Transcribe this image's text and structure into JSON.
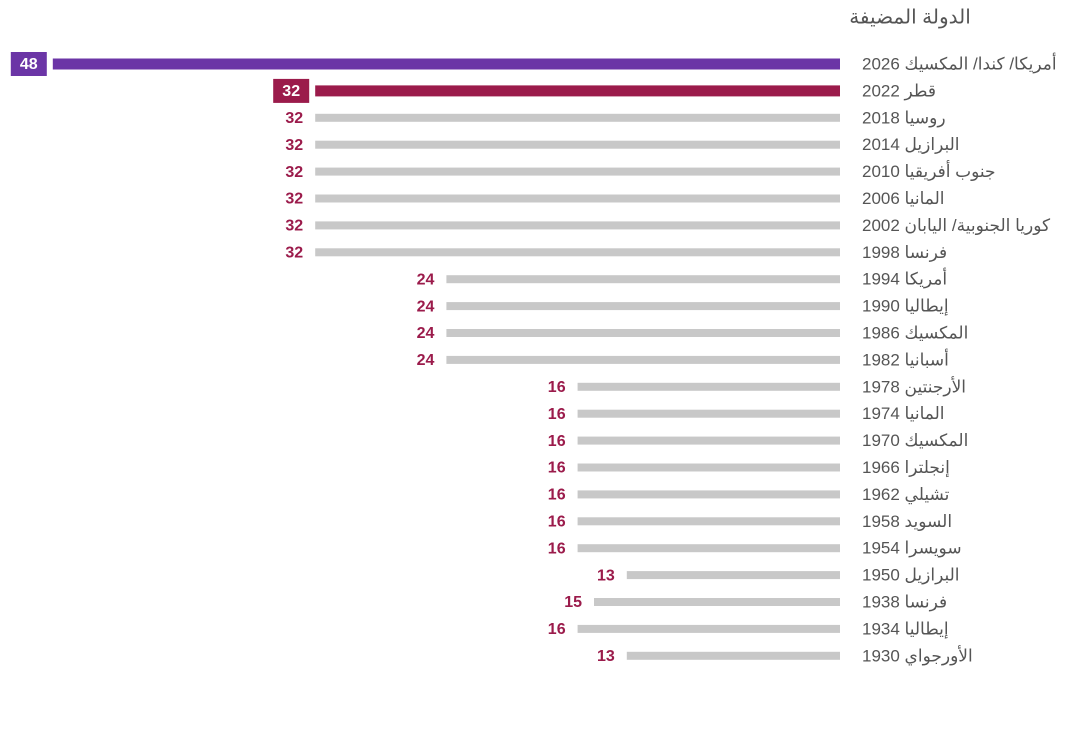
{
  "chart_data": {
    "type": "bar",
    "orientation": "horizontal",
    "title": "الدولة المضيفة",
    "categories": [
      "أمريكا/ كندا/ المكسيك 2026",
      "قطر 2022",
      "روسيا 2018",
      "البرازيل 2014",
      "جنوب أفريقيا 2010",
      "المانيا 2006",
      "كوريا الجنوبية/ اليابان 2002",
      "فرنسا 1998",
      "أمريكا 1994",
      "إيطاليا 1990",
      "المكسيك 1986",
      "أسبانيا 1982",
      "الأرجنتين 1978",
      "المانيا 1974",
      "المكسيك 1970",
      "إنجلترا 1966",
      "تشيلي 1962",
      "السويد 1958",
      "سويسرا 1954",
      "البرازيل 1950",
      "فرنسا 1938",
      "إيطاليا 1934",
      "الأورجواي 1930"
    ],
    "values": [
      48,
      32,
      32,
      32,
      32,
      32,
      32,
      32,
      24,
      24,
      24,
      24,
      16,
      16,
      16,
      16,
      16,
      16,
      16,
      13,
      15,
      16,
      13
    ],
    "colors": [
      "#6b35a6",
      "#9b1b4b",
      "#c8c8c8",
      "#c8c8c8",
      "#c8c8c8",
      "#c8c8c8",
      "#c8c8c8",
      "#c8c8c8",
      "#c8c8c8",
      "#c8c8c8",
      "#c8c8c8",
      "#c8c8c8",
      "#c8c8c8",
      "#c8c8c8",
      "#c8c8c8",
      "#c8c8c8",
      "#c8c8c8",
      "#c8c8c8",
      "#c8c8c8",
      "#c8c8c8",
      "#c8c8c8",
      "#c8c8c8",
      "#c8c8c8"
    ],
    "label_color": "#9b1b4b"
  }
}
